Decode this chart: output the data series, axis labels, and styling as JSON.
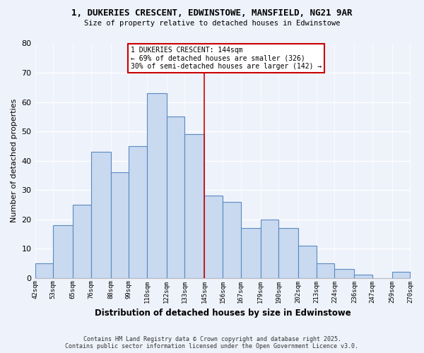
{
  "title": "1, DUKERIES CRESCENT, EDWINSTOWE, MANSFIELD, NG21 9AR",
  "subtitle": "Size of property relative to detached houses in Edwinstowe",
  "xlabel": "Distribution of detached houses by size in Edwinstowe",
  "ylabel": "Number of detached properties",
  "bar_color": "#c8d9f0",
  "bar_edge_color": "#5a8ac0",
  "background_color": "#eef2fb",
  "grid_color": "#ffffff",
  "bin_labels": [
    "42sqm",
    "53sqm",
    "65sqm",
    "76sqm",
    "88sqm",
    "99sqm",
    "110sqm",
    "122sqm",
    "133sqm",
    "145sqm",
    "156sqm",
    "167sqm",
    "179sqm",
    "190sqm",
    "202sqm",
    "213sqm",
    "224sqm",
    "236sqm",
    "247sqm",
    "259sqm",
    "270sqm"
  ],
  "bar_values": [
    5,
    18,
    25,
    43,
    36,
    45,
    63,
    55,
    49,
    28,
    26,
    17,
    20,
    17,
    11,
    5,
    3,
    1,
    0,
    2
  ],
  "ylim": [
    0,
    80
  ],
  "yticks": [
    0,
    10,
    20,
    30,
    40,
    50,
    60,
    70,
    80
  ],
  "annotation_line1": "1 DUKERIES CRESCENT: 144sqm",
  "annotation_line2": "← 69% of detached houses are smaller (326)",
  "annotation_line3": "30% of semi-detached houses are larger (142) →",
  "footer_line1": "Contains HM Land Registry data © Crown copyright and database right 2025.",
  "footer_line2": "Contains public sector information licensed under the Open Government Licence v3.0.",
  "red_line_color": "#cc0000",
  "annotation_box_color": "#ffffff",
  "annotation_box_edge": "#cc0000",
  "bin_edges": [
    42,
    53,
    65,
    76,
    88,
    99,
    110,
    122,
    133,
    145,
    156,
    167,
    179,
    190,
    202,
    213,
    224,
    236,
    247,
    259,
    270
  ]
}
